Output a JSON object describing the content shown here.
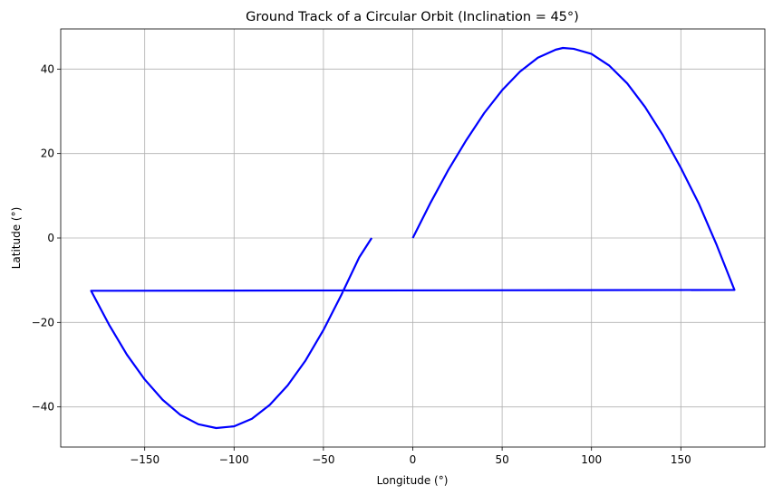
{
  "chart_data": {
    "type": "line",
    "title": "Ground Track of a Circular Orbit (Inclination = 45°)",
    "xlabel": "Longitude (°)",
    "ylabel": "Latitude (°)",
    "xlim": [
      -197,
      197
    ],
    "ylim": [
      -49.5,
      49.5
    ],
    "xticks": [
      -150,
      -100,
      -50,
      0,
      50,
      100,
      150
    ],
    "yticks": [
      -40,
      -20,
      0,
      20,
      40
    ],
    "xtick_labels": [
      "−150",
      "−100",
      "−50",
      "0",
      "50",
      "100",
      "150"
    ],
    "ytick_labels": [
      "−40",
      "−20",
      "0",
      "20",
      "40"
    ],
    "grid": true,
    "series": [
      {
        "color": "#0000ff",
        "points": [
          [
            0,
            0
          ],
          [
            10,
            8.4
          ],
          [
            20,
            16.2
          ],
          [
            30,
            23.2
          ],
          [
            40,
            29.6
          ],
          [
            50,
            35.0
          ],
          [
            60,
            39.4
          ],
          [
            70,
            42.7
          ],
          [
            80,
            44.6
          ],
          [
            84,
            45.0
          ],
          [
            90,
            44.8
          ],
          [
            100,
            43.6
          ],
          [
            110,
            40.8
          ],
          [
            120,
            36.6
          ],
          [
            130,
            31.0
          ],
          [
            140,
            24.3
          ],
          [
            150,
            16.6
          ],
          [
            160,
            8.2
          ],
          [
            170,
            -1.6
          ],
          [
            180,
            -12.3
          ],
          [
            -180,
            -12.5
          ],
          [
            -170,
            -20.5
          ],
          [
            -160,
            -27.6
          ],
          [
            -150,
            -33.5
          ],
          [
            -140,
            -38.3
          ],
          [
            -130,
            -41.9
          ],
          [
            -120,
            -44.1
          ],
          [
            -110,
            -45.0
          ],
          [
            -100,
            -44.6
          ],
          [
            -90,
            -42.8
          ],
          [
            -80,
            -39.5
          ],
          [
            -70,
            -34.9
          ],
          [
            -60,
            -29.0
          ],
          [
            -50,
            -21.8
          ],
          [
            -40,
            -13.5
          ],
          [
            -30,
            -4.6
          ],
          [
            -23,
            0
          ]
        ]
      }
    ]
  }
}
